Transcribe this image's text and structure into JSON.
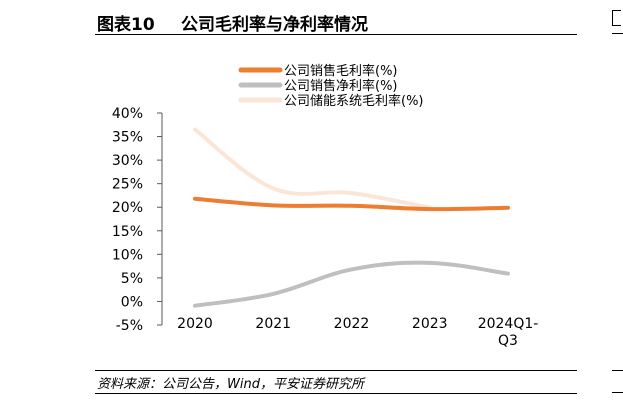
{
  "figure": {
    "label": "图表10",
    "title": "公司毛利率与净利率情况"
  },
  "source": "资料来源：公司公告，Wind，平安证券研究所",
  "chart_data": {
    "type": "line",
    "title": "",
    "xlabel": "",
    "ylabel": "",
    "categories": [
      "2020",
      "2021",
      "2022",
      "2023",
      "2024Q1-Q3"
    ],
    "category_lines": [
      [
        "2020"
      ],
      [
        "2021"
      ],
      [
        "2022"
      ],
      [
        "2023"
      ],
      [
        "2024Q1-",
        "Q3"
      ]
    ],
    "y_ticks": [
      "40%",
      "35%",
      "30%",
      "25%",
      "20%",
      "15%",
      "10%",
      "5%",
      "0%",
      "-5%"
    ],
    "ylim": [
      -5,
      40
    ],
    "grid": false,
    "legend_position": "top",
    "series": [
      {
        "name": "公司销售毛利率(%)",
        "color": "#ED7D31",
        "values": [
          21.8,
          20.4,
          20.3,
          19.6,
          19.9
        ]
      },
      {
        "name": "公司销售净利率(%)",
        "color": "#BFBFBF",
        "values": [
          -0.9,
          1.6,
          6.8,
          8.2,
          5.9
        ]
      },
      {
        "name": "公司储能系统毛利率(%)",
        "color": "#FBE5D6",
        "values": [
          36.5,
          24.0,
          23.0,
          19.9,
          null
        ]
      }
    ]
  }
}
